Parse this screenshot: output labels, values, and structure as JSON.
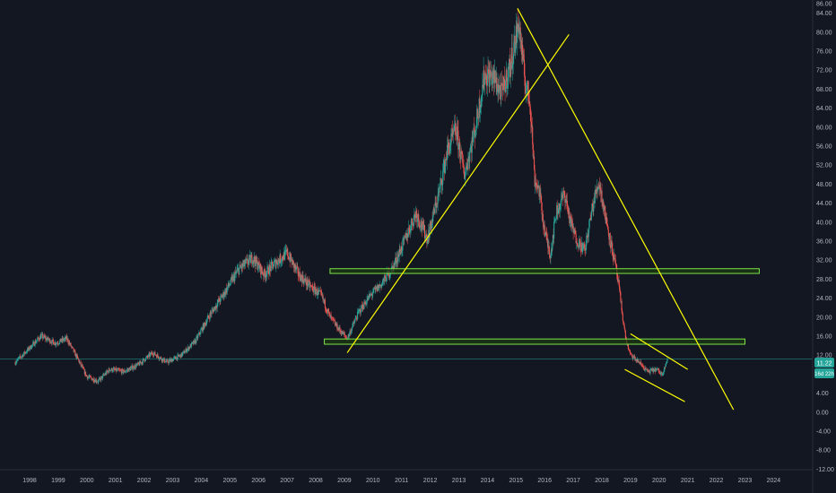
{
  "chart_data": {
    "type": "candlestick",
    "price_axis": {
      "range": [
        -12,
        86
      ],
      "ticks": [
        "86.00",
        "84.00",
        "80.00",
        "76.00",
        "72.00",
        "68.00",
        "64.00",
        "60.00",
        "56.00",
        "52.00",
        "48.00",
        "44.00",
        "40.00",
        "36.00",
        "32.00",
        "28.00",
        "24.00",
        "20.00",
        "16.00",
        "12.00",
        "8.00",
        "4.00",
        "0.00",
        "-4.00",
        "-8.00",
        "-12.00"
      ],
      "last_price_label": "11.22",
      "countdown_label": "16d 22h"
    },
    "time_axis": {
      "ticks": [
        "1998",
        "1999",
        "2000",
        "2001",
        "2002",
        "2003",
        "2004",
        "2005",
        "2006",
        "2007",
        "2008",
        "2009",
        "2010",
        "2011",
        "2012",
        "2013",
        "2014",
        "2015",
        "2016",
        "2017",
        "2018",
        "2019",
        "2020",
        "2021",
        "2022",
        "2023",
        "2024"
      ]
    },
    "price_anchors": [
      [
        1997.5,
        10.5
      ],
      [
        1998.0,
        13.5
      ],
      [
        1998.4,
        16.0
      ],
      [
        1998.9,
        14.5
      ],
      [
        1999.3,
        15.5
      ],
      [
        1999.7,
        11.0
      ],
      [
        2000.0,
        7.5
      ],
      [
        2000.4,
        6.5
      ],
      [
        2000.8,
        9.0
      ],
      [
        2001.3,
        8.5
      ],
      [
        2001.8,
        10.0
      ],
      [
        2002.3,
        12.5
      ],
      [
        2002.8,
        10.5
      ],
      [
        2003.3,
        12.0
      ],
      [
        2003.8,
        15.0
      ],
      [
        2004.3,
        20.5
      ],
      [
        2004.8,
        25.0
      ],
      [
        2005.3,
        30.0
      ],
      [
        2005.8,
        32.5
      ],
      [
        2006.2,
        29.0
      ],
      [
        2006.6,
        31.5
      ],
      [
        2007.0,
        33.5
      ],
      [
        2007.4,
        29.0
      ],
      [
        2007.8,
        26.5
      ],
      [
        2008.2,
        24.5
      ],
      [
        2008.5,
        20.0
      ],
      [
        2008.8,
        17.5
      ],
      [
        2009.1,
        15.5
      ],
      [
        2009.5,
        21.0
      ],
      [
        2009.9,
        24.5
      ],
      [
        2010.3,
        27.0
      ],
      [
        2010.7,
        30.5
      ],
      [
        2011.1,
        36.0
      ],
      [
        2011.5,
        42.0
      ],
      [
        2011.9,
        36.5
      ],
      [
        2012.3,
        46.0
      ],
      [
        2012.6,
        55.0
      ],
      [
        2012.9,
        59.5
      ],
      [
        2013.2,
        50.0
      ],
      [
        2013.6,
        60.5
      ],
      [
        2013.9,
        71.0
      ],
      [
        2014.2,
        70.5
      ],
      [
        2014.5,
        67.0
      ],
      [
        2014.8,
        73.0
      ],
      [
        2015.1,
        82.0
      ],
      [
        2015.3,
        70.0
      ],
      [
        2015.5,
        65.0
      ],
      [
        2015.65,
        49.0
      ],
      [
        2015.8,
        47.0
      ],
      [
        2016.0,
        38.0
      ],
      [
        2016.2,
        33.0
      ],
      [
        2016.4,
        42.0
      ],
      [
        2016.7,
        46.0
      ],
      [
        2016.9,
        40.0
      ],
      [
        2017.1,
        36.5
      ],
      [
        2017.4,
        34.0
      ],
      [
        2017.7,
        44.0
      ],
      [
        2017.9,
        48.5
      ],
      [
        2018.1,
        42.0
      ],
      [
        2018.3,
        36.0
      ],
      [
        2018.5,
        30.0
      ],
      [
        2018.6,
        26.0
      ],
      [
        2018.75,
        19.0
      ],
      [
        2018.85,
        15.0
      ],
      [
        2019.0,
        12.0
      ],
      [
        2019.3,
        10.5
      ],
      [
        2019.6,
        8.5
      ],
      [
        2019.9,
        9.0
      ],
      [
        2020.1,
        8.0
      ],
      [
        2020.3,
        11.22
      ]
    ],
    "drawings": {
      "lines": [
        {
          "from": [
            2009.1,
            12.5
          ],
          "to": [
            2016.85,
            79.5
          ]
        },
        {
          "from": [
            2015.05,
            85.0
          ],
          "to": [
            2022.6,
            0.5
          ]
        },
        {
          "from": [
            2019.0,
            16.5
          ],
          "to": [
            2021.0,
            9.0
          ]
        },
        {
          "from": [
            2018.8,
            9.0
          ],
          "to": [
            2020.9,
            2.2
          ]
        }
      ],
      "zones": [
        {
          "x": [
            2008.5,
            2023.5
          ],
          "y": [
            29.2,
            30.2
          ]
        },
        {
          "x": [
            2008.3,
            2023.0
          ],
          "y": [
            14.3,
            15.4
          ]
        }
      ],
      "horizontal_line": 11.22
    },
    "colors": {
      "background": "#131722",
      "up": "#26a69a",
      "down": "#ef5350",
      "trendline": "#ffff00",
      "zone_fill": "#1e3a12",
      "zone_border": "#7ce34a",
      "last_price": "#26a69a",
      "axis_text": "#b2b5be"
    },
    "title": "",
    "xlabel": "",
    "ylabel": "",
    "grid": false
  }
}
